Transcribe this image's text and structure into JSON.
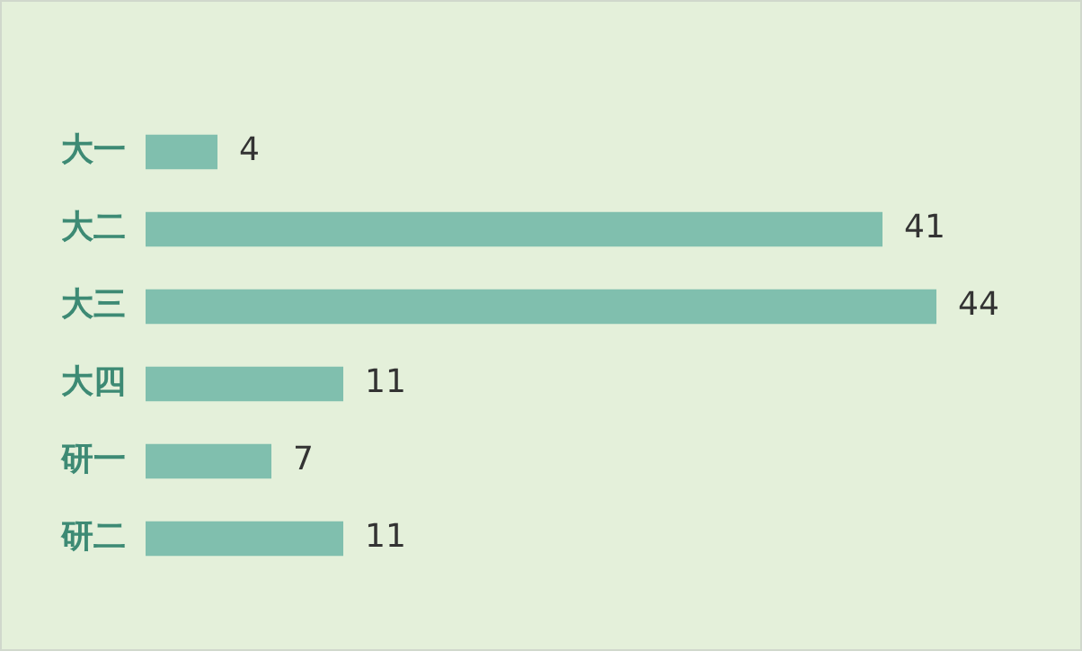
{
  "chart_data": {
    "type": "bar",
    "orientation": "horizontal",
    "categories": [
      "大一",
      "大二",
      "大三",
      "大四",
      "研一",
      "研二"
    ],
    "values": [
      4,
      41,
      44,
      11,
      7,
      11
    ],
    "color": "#80bfae",
    "data_labels": true
  }
}
